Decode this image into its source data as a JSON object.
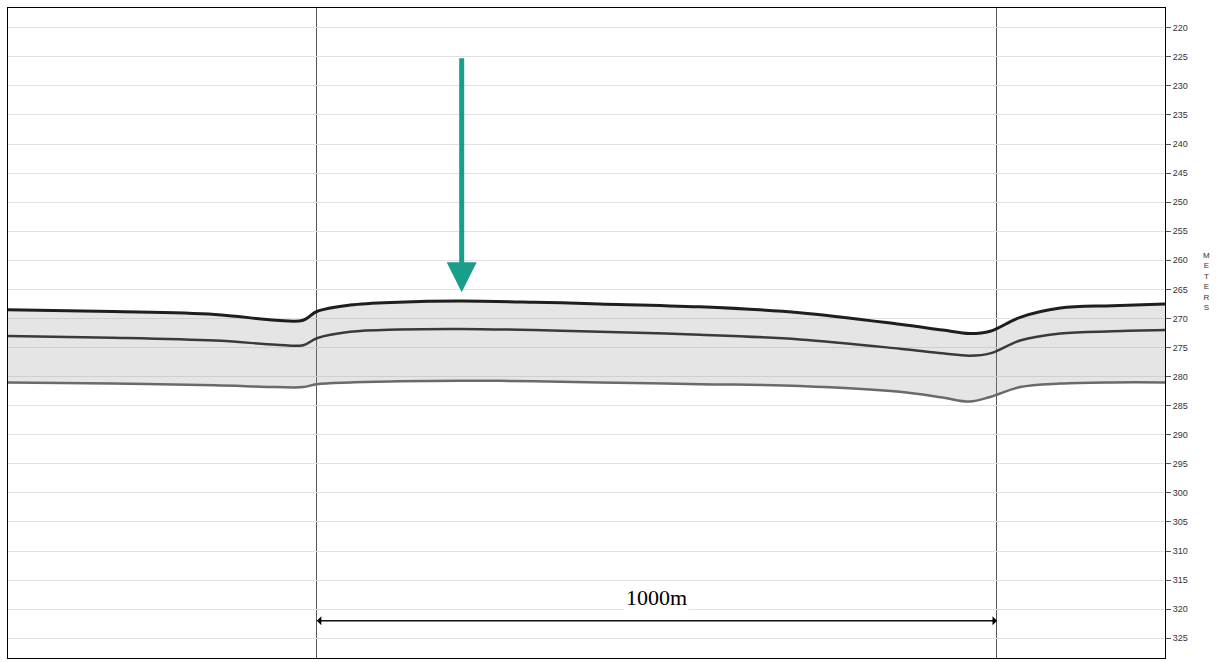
{
  "chart_data": {
    "type": "line",
    "y_label": "METERS",
    "x": [
      -454,
      -300,
      -150,
      -60,
      -20,
      0,
      49,
      120,
      210,
      320,
      416,
      563,
      710,
      857,
      920,
      960,
      990,
      1034,
      1093,
      1170,
      1247
    ],
    "series": [
      {
        "color": "#1e1e1e",
        "values": [
          268.5,
          268.8,
          269.3,
          270.3,
          270.3,
          268.8,
          267.7,
          267.2,
          267.0,
          267.2,
          267.5,
          268.0,
          269.0,
          271.0,
          272.0,
          272.6,
          272.2,
          269.8,
          268.2,
          267.8,
          267.5
        ]
      },
      {
        "color": "#3a3a3a",
        "values": [
          273.0,
          273.3,
          273.8,
          274.5,
          274.6,
          273.4,
          272.3,
          271.9,
          271.8,
          272.0,
          272.3,
          272.8,
          273.6,
          275.2,
          276.0,
          276.4,
          276.0,
          273.8,
          272.6,
          272.2,
          272.0
        ]
      },
      {
        "color": "#6a6a6a",
        "values": [
          281.0,
          281.2,
          281.5,
          281.8,
          281.8,
          281.3,
          281.0,
          280.8,
          280.7,
          280.8,
          281.0,
          281.3,
          281.6,
          282.6,
          283.6,
          284.3,
          283.5,
          281.8,
          281.2,
          281.0,
          281.0
        ]
      }
    ],
    "xlim": [
      -454,
      1247
    ],
    "xticks": [
      0,
      1000
    ],
    "ylim": [
      216.6,
      328.4
    ],
    "yticks": [
      220,
      225,
      230,
      235,
      240,
      245,
      250,
      255,
      260,
      265,
      270,
      275,
      280,
      285,
      290,
      295,
      300,
      305,
      310,
      315,
      320,
      325
    ],
    "grid": true,
    "tick_labels": "y",
    "annotations": [
      {
        "text": "1000m",
        "x": 500,
        "y": 318
      }
    ],
    "arrows": [
      {
        "x": 213,
        "y_from": 225,
        "y_to": 265.5,
        "color": "#1a9e8a"
      },
      {
        "x_from": 0,
        "x_to": 1000,
        "y": 322,
        "color": "#000000"
      }
    ]
  }
}
